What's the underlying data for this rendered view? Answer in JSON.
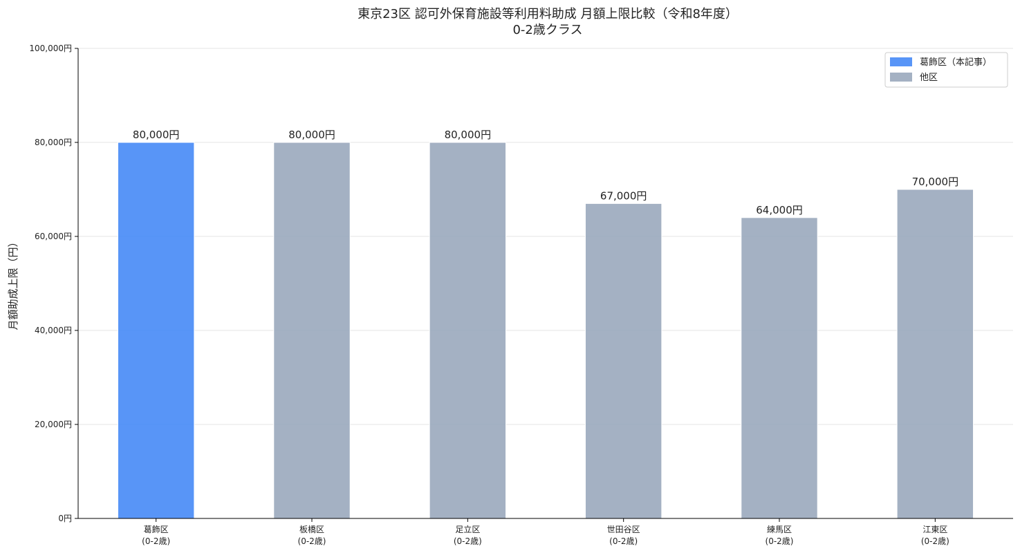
{
  "chart_data": {
    "type": "bar",
    "title": "東京23区 認可外保育施設等利用料助成 月額上限比較（令和8年度）",
    "subtitle": "0-2歳クラス",
    "xlabel": "",
    "ylabel": "月額助成上限（円）",
    "ylim": [
      0,
      100000
    ],
    "yticks": [
      0,
      20000,
      40000,
      60000,
      80000,
      100000
    ],
    "ytick_labels": [
      "0円",
      "20,000円",
      "40,000円",
      "60,000円",
      "80,000円",
      "100,000円"
    ],
    "grid": "y",
    "legend_position": "top-right",
    "categories": [
      {
        "name": "葛飾区",
        "sub": "(0-2歳)",
        "group": "highlight"
      },
      {
        "name": "板橋区",
        "sub": "(0-2歳)",
        "group": "other"
      },
      {
        "name": "足立区",
        "sub": "(0-2歳)",
        "group": "other"
      },
      {
        "name": "世田谷区",
        "sub": "(0-2歳)",
        "group": "other"
      },
      {
        "name": "練馬区",
        "sub": "(0-2歳)",
        "group": "other"
      },
      {
        "name": "江東区",
        "sub": "(0-2歳)",
        "group": "other"
      }
    ],
    "values": [
      80000,
      80000,
      80000,
      67000,
      64000,
      70000
    ],
    "value_labels": [
      "80,000円",
      "80,000円",
      "80,000円",
      "67,000円",
      "64,000円",
      "70,000円"
    ],
    "legend": [
      {
        "label": "葛飾区（本記事）",
        "group": "highlight",
        "color": "#3b82f6"
      },
      {
        "label": "他区",
        "group": "other",
        "color": "#94a3b8"
      }
    ],
    "colors": {
      "highlight": "#3b82f6",
      "other": "#94a3b8"
    }
  }
}
